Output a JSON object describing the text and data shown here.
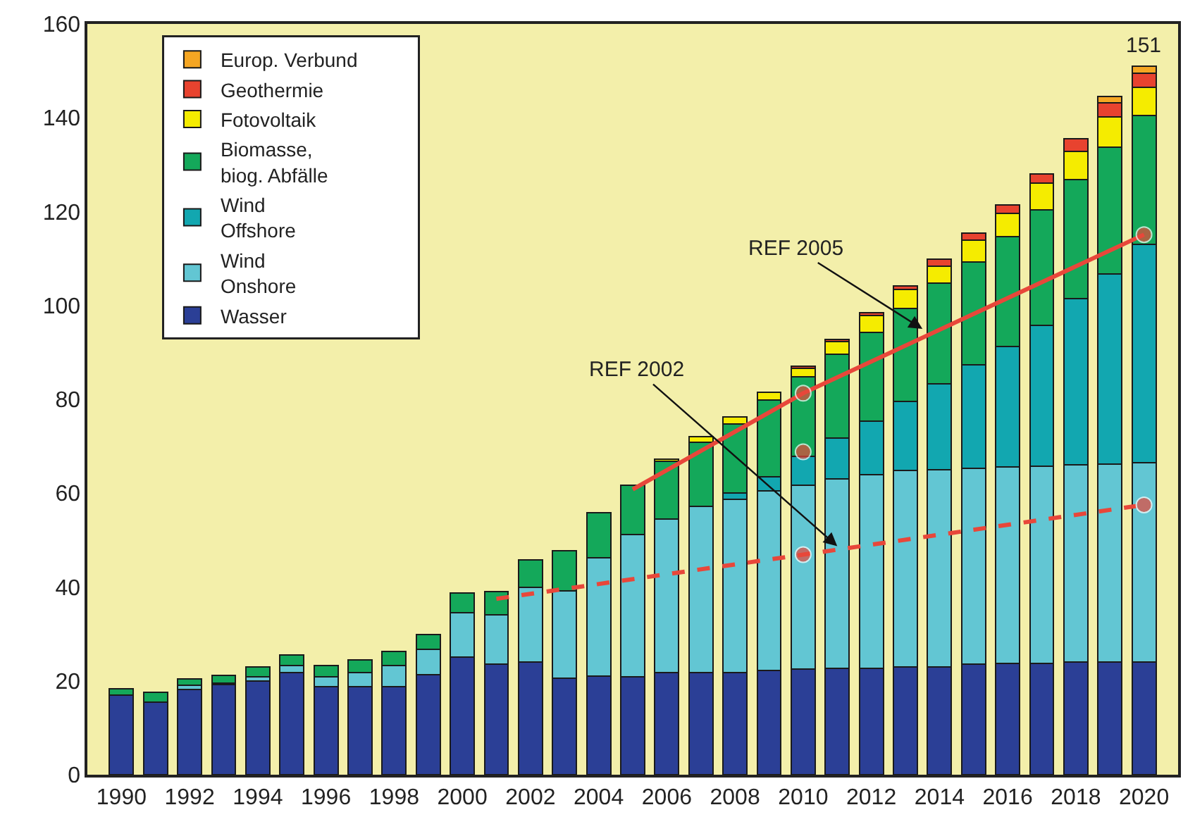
{
  "chart_data": {
    "type": "bar",
    "stacked": true,
    "x": [
      1990,
      1991,
      1992,
      1993,
      1994,
      1995,
      1996,
      1997,
      1998,
      1999,
      2000,
      2001,
      2002,
      2003,
      2004,
      2005,
      2006,
      2007,
      2008,
      2009,
      2010,
      2011,
      2012,
      2013,
      2014,
      2015,
      2016,
      2017,
      2018,
      2019,
      2020
    ],
    "xlim": [
      1989,
      2021
    ],
    "xticks": [
      1990,
      1992,
      1994,
      1996,
      1998,
      2000,
      2002,
      2004,
      2006,
      2008,
      2010,
      2012,
      2014,
      2016,
      2018,
      2020
    ],
    "ylim": [
      0,
      160
    ],
    "yticks": [
      0,
      20,
      40,
      60,
      80,
      100,
      120,
      140,
      160
    ],
    "grid": false,
    "legend": "top",
    "series": [
      {
        "name": "Wasser",
        "color": "#2b3f96",
        "values": [
          17,
          15.5,
          18.2,
          19.2,
          20,
          21.8,
          18.8,
          18.8,
          18.8,
          21.3,
          25,
          23.5,
          24,
          20.5,
          21,
          20.8,
          21.7,
          21.8,
          21.8,
          22.2,
          22.5,
          22.7,
          22.7,
          23,
          23,
          23.5,
          23.7,
          23.7,
          24,
          24,
          24
        ]
      },
      {
        "name": "Wind\nOnshore",
        "color": "#62c6d3",
        "values": [
          null,
          null,
          0.8,
          0.3,
          0.8,
          1.5,
          2,
          3,
          4.5,
          5.4,
          9.5,
          10.5,
          16,
          18.7,
          25.3,
          30.4,
          32.8,
          35.4,
          36.9,
          38.3,
          39.2,
          40.3,
          41.3,
          41.8,
          42,
          41.8,
          41.9,
          42.1,
          42,
          42.2,
          42.5
        ]
      },
      {
        "name": "Wind\nOffshore",
        "color": "#12a7b0",
        "values": [
          null,
          null,
          null,
          null,
          null,
          null,
          null,
          null,
          null,
          null,
          null,
          null,
          null,
          null,
          null,
          null,
          null,
          null,
          1.3,
          3,
          6.1,
          8.8,
          11.3,
          14.8,
          18.3,
          22,
          25.7,
          30,
          35.4,
          40.5,
          46.5
        ]
      },
      {
        "name": "Biomasse,\nbiog. Abfälle",
        "color": "#14a85a",
        "values": [
          1.3,
          2,
          1.4,
          1.7,
          2.2,
          2.2,
          2.5,
          2.7,
          3,
          3.2,
          4.2,
          5,
          5.8,
          8.6,
          9.5,
          10.5,
          12.3,
          13.6,
          14.8,
          16.3,
          17,
          17.8,
          19,
          19.8,
          21.4,
          22,
          23.4,
          24.6,
          25.5,
          27,
          27.5
        ]
      },
      {
        "name": "Fotovoltaik",
        "color": "#f5ec00",
        "values": [
          null,
          null,
          null,
          null,
          null,
          null,
          null,
          null,
          null,
          null,
          null,
          null,
          null,
          null,
          null,
          null,
          0.5,
          1.2,
          1.5,
          1.7,
          1.8,
          2.7,
          3.5,
          4,
          3.7,
          4.6,
          5,
          5.7,
          6,
          6.5,
          6
        ]
      },
      {
        "name": "Geothermie",
        "color": "#e8432f",
        "values": [
          null,
          null,
          null,
          null,
          null,
          null,
          null,
          null,
          null,
          null,
          null,
          null,
          null,
          null,
          null,
          null,
          null,
          null,
          null,
          null,
          0.5,
          0.5,
          0.7,
          0.8,
          1.5,
          1.5,
          1.7,
          2,
          2.7,
          3,
          3
        ]
      },
      {
        "name": "Europ. Verbund",
        "color": "#f5a623",
        "values": [
          null,
          null,
          null,
          null,
          null,
          null,
          null,
          null,
          null,
          null,
          null,
          null,
          null,
          null,
          null,
          null,
          null,
          null,
          null,
          null,
          null,
          null,
          null,
          null,
          null,
          null,
          null,
          null,
          null,
          1.3,
          1.5
        ]
      },
      {
        "type": "line",
        "color": "#e8473a",
        "line_style": "dashed",
        "marker": "circle",
        "x": [
          2001,
          2010,
          2020
        ],
        "values": [
          37.5,
          46.9,
          57.5
        ]
      },
      {
        "type": "line",
        "color": "#e8473a",
        "line_style": "solid",
        "marker": "circle",
        "x": [
          2005,
          2010,
          2020
        ],
        "values": [
          60.8,
          81.3,
          115.1
        ]
      },
      {
        "type": "scatter",
        "color": "#e8473a",
        "marker": "circle",
        "x": [
          2010
        ],
        "values": [
          68.8
        ]
      }
    ],
    "totals": [
      null,
      null,
      null,
      null,
      null,
      null,
      null,
      null,
      null,
      null,
      null,
      null,
      null,
      null,
      null,
      null,
      null,
      null,
      null,
      null,
      null,
      null,
      null,
      null,
      null,
      null,
      null,
      null,
      null,
      null,
      "151"
    ],
    "annotations": [
      {
        "text": "REF 2005",
        "x": 2013.5,
        "y": 95
      },
      {
        "text": "REF 2002",
        "x": 2011,
        "y": 48.7
      }
    ]
  }
}
